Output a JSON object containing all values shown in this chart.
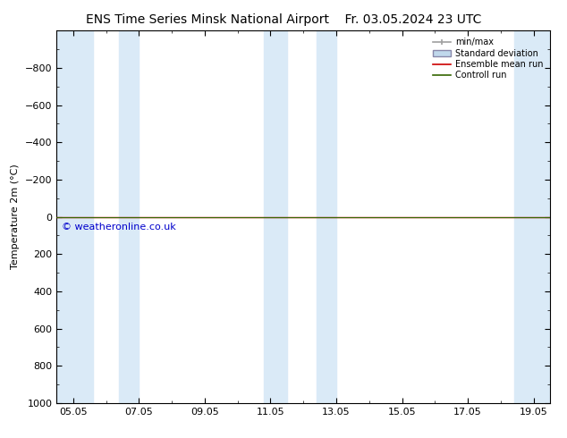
{
  "title_left": "ENS Time Series Minsk National Airport",
  "title_right": "Fr. 03.05.2024 23 UTC",
  "ylabel": "Temperature 2m (°C)",
  "ylim_top": -1000,
  "ylim_bottom": 1000,
  "yticks": [
    -800,
    -600,
    -400,
    -200,
    0,
    200,
    400,
    600,
    800,
    1000
  ],
  "xlim_start": 4.5,
  "xlim_end": 19.5,
  "xtick_labels": [
    "05.05",
    "07.05",
    "09.05",
    "11.05",
    "13.05",
    "15.05",
    "17.05",
    "19.05"
  ],
  "xtick_positions": [
    5.0,
    7.0,
    9.0,
    11.0,
    13.0,
    15.0,
    17.0,
    19.0
  ],
  "shaded_bands": [
    [
      4.5,
      5.6
    ],
    [
      6.4,
      7.0
    ],
    [
      10.8,
      11.5
    ],
    [
      12.4,
      13.0
    ],
    [
      18.4,
      19.5
    ]
  ],
  "band_color": "#daeaf7",
  "background_color": "#ffffff",
  "green_line_color": "#336600",
  "red_line_color": "#cc0000",
  "legend_minmax_color": "#a0a0a0",
  "legend_std_color": "#c0d8ec",
  "legend_ens_color": "#cc0000",
  "legend_ctrl_color": "#336600",
  "copyright_text": "© weatheronline.co.uk",
  "copyright_color": "#0000cc",
  "copyright_fontsize": 8,
  "title_fontsize": 10,
  "axis_fontsize": 8,
  "tick_fontsize": 8
}
